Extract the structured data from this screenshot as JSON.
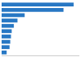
{
  "chart_data": {
    "type": "bar",
    "orientation": "horizontal",
    "categories": [
      null,
      null,
      null,
      null,
      null,
      null,
      null,
      null,
      null,
      null
    ],
    "values": [
      100,
      86,
      32,
      22,
      17,
      14,
      13,
      12,
      11,
      7
    ],
    "color": "#2878c4",
    "xlim": [
      0,
      108
    ],
    "grid": false,
    "tick_labels": false
  }
}
